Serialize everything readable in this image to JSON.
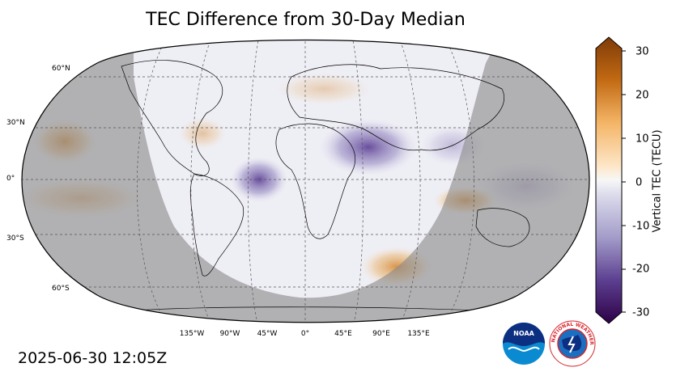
{
  "title": "TEC Difference from 30-Day Median",
  "timestamp": "2025-06-30 12:05Z",
  "lat_labels": [
    "60°N",
    "30°N",
    "0°",
    "30°S",
    "60°S"
  ],
  "lon_labels": [
    "135°W",
    "90°W",
    "45°W",
    "0°",
    "45°E",
    "90°E",
    "135°E"
  ],
  "colorbar": {
    "label": "Vertical TEC (TECU)",
    "min": -30,
    "max": 30,
    "ticks": [
      "30",
      "20",
      "10",
      "0",
      "-10",
      "-20",
      "-30"
    ],
    "tick_values": [
      30,
      20,
      10,
      0,
      -10,
      -20,
      -30
    ],
    "colormap": "PuOr_r",
    "negative_color": "#2d0047",
    "zero_color": "#f7f7f7",
    "positive_color": "#7f3b08"
  },
  "map": {
    "projection": "robinson",
    "night_shade_color": "#8a8a8a",
    "features": [
      {
        "name": "equatorial anomaly west Africa",
        "sign": "negative",
        "lon": -30,
        "lat": 0
      },
      {
        "name": "east Africa anomaly",
        "sign": "negative",
        "lon": 40,
        "lat": 15
      },
      {
        "name": "pacific positive",
        "sign": "positive",
        "lon": -170,
        "lat": 20
      },
      {
        "name": "south atlantic positive",
        "sign": "positive",
        "lon": 50,
        "lat": -50
      },
      {
        "name": "indonesia positive",
        "sign": "positive",
        "lon": 115,
        "lat": -10
      }
    ]
  },
  "logos": {
    "noaa_text": "NOAA",
    "nws_text": "NATIONAL WEATHER SERVICE"
  }
}
